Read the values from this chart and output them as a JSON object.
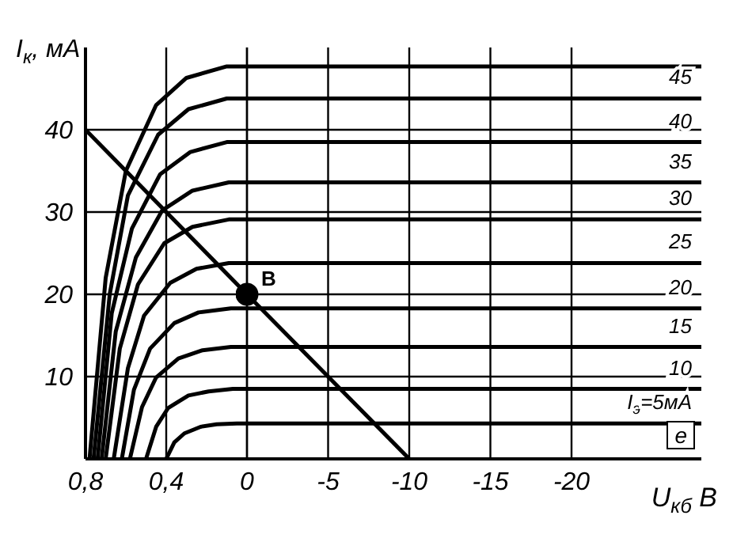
{
  "chart_data": [
    {
      "type": "line",
      "ylabel": "I$_{к}$, мА",
      "xlim": [
        0.8,
        0
      ],
      "xticks": [
        {
          "value": 0.8,
          "label": "0,8"
        },
        {
          "value": 0.4,
          "label": "0,4"
        },
        0
      ],
      "ylim": [
        0,
        50
      ],
      "yticks": [
        10,
        20,
        30,
        40
      ],
      "grid": true,
      "marker": "none",
      "line_style": "solid",
      "series": [
        {
          "color": "#000000",
          "x": [
            0.78,
            0.7,
            0.6,
            0.45,
            0.3,
            0.1,
            0
          ],
          "values": [
            0,
            22,
            35,
            43,
            46.3,
            47.7,
            47.7
          ]
        },
        {
          "color": "#000000",
          "x": [
            0.76,
            0.68,
            0.59,
            0.44,
            0.29,
            0.1,
            0
          ],
          "values": [
            0,
            20,
            32,
            39.4,
            42.5,
            43.8,
            43.8
          ]
        },
        {
          "color": "#000000",
          "x": [
            0.74,
            0.67,
            0.57,
            0.43,
            0.28,
            0.1,
            0
          ],
          "values": [
            0,
            17.7,
            28,
            34.6,
            37.3,
            38.5,
            38.5
          ]
        },
        {
          "color": "#000000",
          "x": [
            0.72,
            0.65,
            0.55,
            0.42,
            0.27,
            0.09,
            0
          ],
          "values": [
            0,
            15.5,
            24.5,
            30.2,
            32.6,
            33.6,
            33.6
          ]
        },
        {
          "color": "#000000",
          "x": [
            0.7,
            0.63,
            0.54,
            0.41,
            0.27,
            0.09,
            0
          ],
          "values": [
            0,
            13.4,
            21.2,
            26.2,
            28.2,
            29.1,
            29.1
          ]
        },
        {
          "color": "#000000",
          "x": [
            0.66,
            0.59,
            0.51,
            0.38,
            0.25,
            0.09,
            0
          ],
          "values": [
            0,
            11,
            17.4,
            21.4,
            23.1,
            23.8,
            23.8
          ]
        },
        {
          "color": "#000000",
          "x": [
            0.62,
            0.56,
            0.48,
            0.36,
            0.24,
            0.08,
            0
          ],
          "values": [
            0,
            8.4,
            13.4,
            16.5,
            17.8,
            18.3,
            18.3
          ]
        },
        {
          "color": "#000000",
          "x": [
            0.58,
            0.52,
            0.45,
            0.34,
            0.22,
            0.08,
            0
          ],
          "values": [
            0,
            6.3,
            9.9,
            12.2,
            13.2,
            13.6,
            13.6
          ]
        },
        {
          "color": "#000000",
          "x": [
            0.5,
            0.45,
            0.39,
            0.29,
            0.19,
            0.07,
            0
          ],
          "values": [
            0,
            3.9,
            6.2,
            7.7,
            8.2,
            8.5,
            8.5
          ]
        },
        {
          "color": "#000000",
          "x": [
            0.4,
            0.36,
            0.31,
            0.23,
            0.15,
            0.05,
            0
          ],
          "values": [
            0,
            2,
            3.1,
            3.9,
            4.2,
            4.3,
            4.3
          ]
        },
        {
          "color": "#000000",
          "x": [
            0.8,
            0
          ],
          "values": [
            40,
            20
          ]
        }
      ]
    },
    {
      "type": "line",
      "xlabel": "U$_{кб}$ В",
      "xlim": [
        0,
        -28
      ],
      "xticks": [
        {
          "value": 0,
          "label": null
        },
        -5,
        -10,
        -15,
        -20
      ],
      "ylim": [
        0,
        50
      ],
      "yticks": [
        10,
        20,
        30,
        40
      ],
      "tick_labels": "x",
      "grid": true,
      "marker": "none",
      "line_style": "solid",
      "series": [
        {
          "color": "#000000",
          "x": [
            0,
            -28
          ],
          "values": [
            47.7,
            47.7
          ]
        },
        {
          "name": "45",
          "color": "#000000",
          "x": [
            0,
            -28
          ],
          "values": [
            43.8,
            43.8
          ]
        },
        {
          "name": "40",
          "color": "#000000",
          "x": [
            0,
            -28
          ],
          "values": [
            38.5,
            38.5
          ]
        },
        {
          "name": "35",
          "color": "#000000",
          "x": [
            0,
            -28
          ],
          "values": [
            33.6,
            33.6
          ]
        },
        {
          "name": "30",
          "color": "#000000",
          "x": [
            0,
            -28
          ],
          "values": [
            29.1,
            29.1
          ]
        },
        {
          "name": "25",
          "color": "#000000",
          "x": [
            0,
            -28
          ],
          "values": [
            23.8,
            23.8
          ]
        },
        {
          "name": "20",
          "color": "#000000",
          "x": [
            0,
            -28
          ],
          "values": [
            18.3,
            18.3
          ]
        },
        {
          "name": "15",
          "color": "#000000",
          "x": [
            0,
            -28
          ],
          "values": [
            13.6,
            13.6
          ]
        },
        {
          "name": "10",
          "color": "#000000",
          "x": [
            0,
            -28
          ],
          "values": [
            8.5,
            8.5
          ]
        },
        {
          "name": "I$_{э}$=5мА",
          "color": "#000000",
          "x": [
            0,
            -28
          ],
          "values": [
            4.3,
            4.3
          ]
        },
        {
          "color": "#000000",
          "x": [
            0,
            -10
          ],
          "values": [
            20,
            0
          ]
        },
        {
          "type": "scatter",
          "marker": "circle",
          "color": "#000000",
          "x": [
            0
          ],
          "values": [
            20
          ]
        }
      ],
      "annotations": [
        {
          "text": "B",
          "x": 0,
          "y": 20
        },
        "е"
      ]
    }
  ]
}
